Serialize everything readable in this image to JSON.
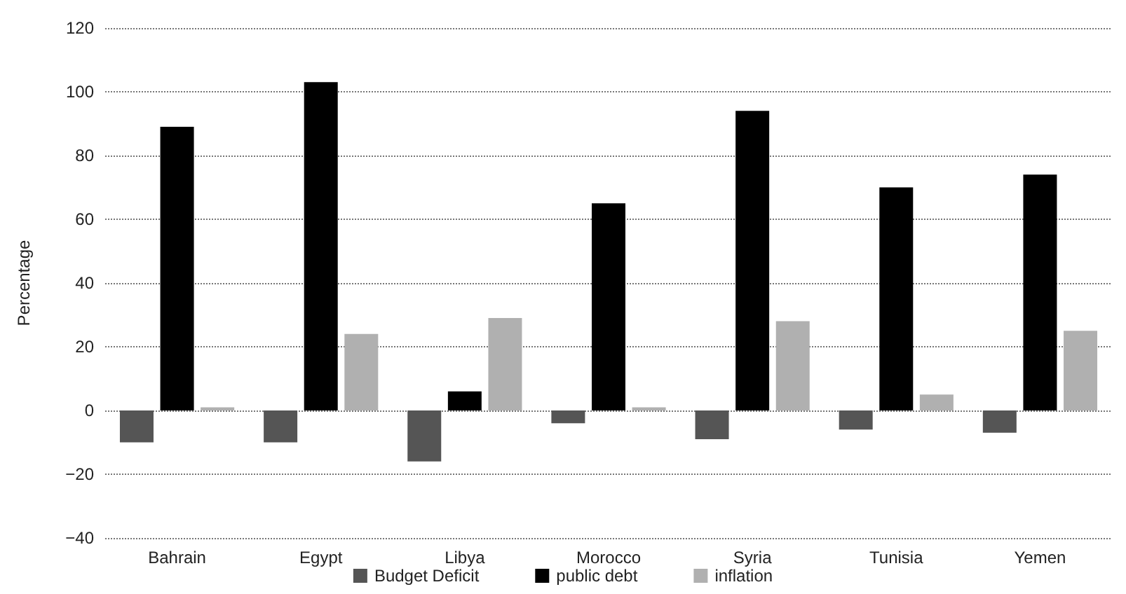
{
  "chart_data": {
    "type": "bar",
    "ylabel": "Percentage",
    "categories": [
      "Bahrain",
      "Egypt",
      "Libya",
      "Morocco",
      "Syria",
      "Tunisia",
      "Yemen"
    ],
    "series": [
      {
        "name": "Budget Deficit",
        "color": "#555555",
        "values": [
          -10,
          -10,
          -16,
          -4,
          -9,
          -6,
          -7
        ]
      },
      {
        "name": "public debt",
        "color": "#000000",
        "values": [
          89,
          103,
          6,
          65,
          94,
          70,
          74
        ]
      },
      {
        "name": "inflation",
        "color": "#b0b0b0",
        "values": [
          1,
          24,
          29,
          1,
          28,
          5,
          25
        ]
      }
    ],
    "ylim": [
      -40,
      120
    ],
    "yticks": [
      -40,
      -20,
      0,
      20,
      40,
      60,
      80,
      100,
      120
    ],
    "grid": "y",
    "legend": "bottom"
  }
}
